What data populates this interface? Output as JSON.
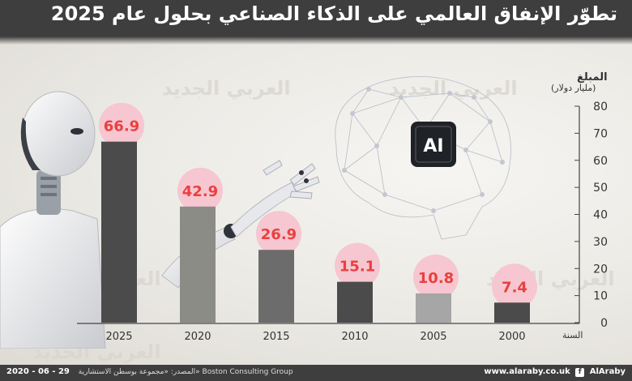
{
  "header": {
    "title": "تطوّر الإنفاق العالمي على الذكاء الصناعي بحلول عام 2025"
  },
  "axis_labels": {
    "y_title": "المبلغ",
    "y_unit": "(مليار دولار)",
    "x_title": "السنة"
  },
  "brand": {
    "watermark": "العربي الجديد",
    "ai_chip_label": "AI"
  },
  "footer": {
    "date": "2020 - 06 - 29",
    "source": "المصدر: «مجموعة بوسطن الاستشارية» Boston Consulting Group",
    "website": "www.alaraby.co.uk",
    "handle": "AlAraby"
  },
  "colors": {
    "header_bg": "#3e3e3e",
    "value_text": "#e8413f",
    "bubble": "#f6c6d1",
    "bar_2025": "#4b4b4b",
    "bar_2020": "#8c8c86",
    "bar_2015": "#6c6c6c",
    "bar_2010": "#4b4b4b",
    "bar_2005": "#a6a6a6",
    "bar_2000": "#4b4b4b"
  },
  "chart_data": {
    "type": "bar",
    "categories": [
      "2025",
      "2020",
      "2015",
      "2010",
      "2005",
      "2000"
    ],
    "values": [
      66.9,
      42.9,
      26.9,
      15.1,
      10.8,
      7.4
    ],
    "value_labels": [
      "66.9",
      "42.9",
      "26.9",
      "15.1",
      "10.8",
      "7.4"
    ],
    "title": "تطوّر الإنفاق العالمي على الذكاء الصناعي بحلول عام 2025",
    "xlabel": "السنة",
    "ylabel": "المبلغ (مليار دولار)",
    "ylim": [
      0,
      80
    ],
    "yticks": [
      0,
      10,
      20,
      30,
      40,
      50,
      60,
      70,
      80
    ],
    "y_axis_side": "right",
    "grid": false,
    "legend": "none"
  }
}
